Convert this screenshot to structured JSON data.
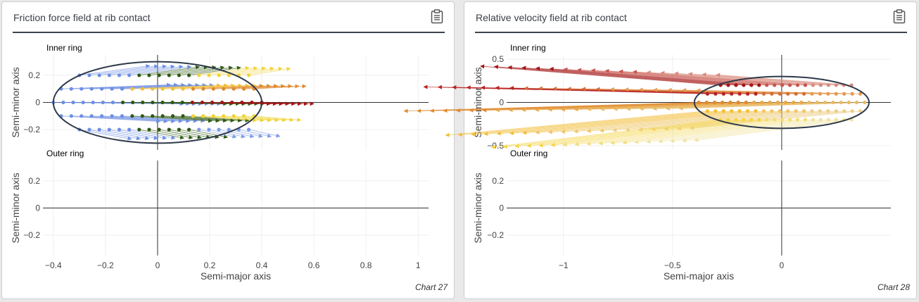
{
  "cards": [
    {
      "title": "Friction force field at rib contact",
      "footer": "Chart 27",
      "chart_data": {
        "type": "vector-field",
        "subplots": [
          {
            "label": "Inner ring",
            "ylabel": "Semi-minor axis",
            "xlim": [
              -0.44,
              1.04
            ],
            "ylim": [
              -0.35,
              0.35
            ],
            "yticks": [
              -0.2,
              0,
              0.2
            ],
            "ytick_labels": [
              "−0.2",
              "0",
              "0.2"
            ]
          },
          {
            "label": "Outer ring",
            "ylabel": "Semi-minor axis",
            "xlim": [
              -0.44,
              1.04
            ],
            "ylim": [
              -0.35,
              0.35
            ],
            "yticks": [
              -0.2,
              0,
              0.2
            ],
            "ytick_labels": [
              "−0.2",
              "0",
              "0.2"
            ]
          }
        ],
        "xlabel": "Semi-major axis",
        "xticks": [
          -0.4,
          -0.2,
          0,
          0.2,
          0.4,
          0.6,
          0.8,
          1
        ],
        "xtick_labels": [
          "−0.4",
          "−0.2",
          "0",
          "0.2",
          "0.4",
          "0.6",
          "0.8",
          "1"
        ],
        "ellipse": {
          "cx": 0,
          "cy": 0,
          "rx": 0.4,
          "ry": 0.3
        },
        "rows": [
          {
            "y": 0.2,
            "x_start": -0.3,
            "x_end": 0.35,
            "points": 18,
            "dx": [
              0.27,
              0.16
            ],
            "dy": [
              0.07,
              0.05
            ],
            "colors": [
              "#6e8fe3",
              "#2f5a14",
              "#f0d43a"
            ]
          },
          {
            "y": 0.1,
            "x_start": -0.37,
            "x_end": 0.37,
            "points": 20,
            "dx": [
              0.42,
              0.2
            ],
            "dy": [
              0.03,
              0.02
            ],
            "colors": [
              "#6e8fe3",
              "#f2bf3a",
              "#e08a30"
            ]
          },
          {
            "y": 0.0,
            "x_start": -0.4,
            "x_end": 0.4,
            "points": 22,
            "dx": [
              0.5,
              0.2
            ],
            "dy": [
              -0.01,
              -0.01
            ],
            "colors": [
              "#6e8fe3",
              "#2f5a14",
              "#a31515"
            ]
          },
          {
            "y": -0.1,
            "x_start": -0.37,
            "x_end": 0.37,
            "points": 20,
            "dx": [
              0.38,
              0.18
            ],
            "dy": [
              -0.04,
              -0.03
            ],
            "colors": [
              "#6e8fe3",
              "#2f5a14",
              "#f0d43a"
            ]
          },
          {
            "y": -0.2,
            "x_start": -0.3,
            "x_end": 0.35,
            "points": 18,
            "dx": [
              0.2,
              0.12
            ],
            "dy": [
              -0.07,
              -0.05
            ],
            "colors": [
              "#6e8fe3",
              "#2f5a14",
              "#7d9be8"
            ]
          }
        ]
      }
    },
    {
      "title": "Relative velocity field at rib contact",
      "footer": "Chart 28",
      "chart_data": {
        "type": "vector-field",
        "subplots": [
          {
            "label": "Inner ring",
            "ylabel": "Semi-minor axis",
            "xlim": [
              -1.26,
              0.5
            ],
            "ylim": [
              -0.55,
              0.55
            ],
            "yticks": [
              -0.5,
              0,
              0.5
            ],
            "ytick_labels": [
              "−0.5",
              "0",
              "0.5"
            ]
          },
          {
            "label": "Outer ring",
            "ylabel": "Semi-minor axis",
            "xlim": [
              -1.26,
              0.5
            ],
            "ylim": [
              -0.35,
              0.35
            ],
            "yticks": [
              -0.2,
              0,
              0.2
            ],
            "ytick_labels": [
              "−0.2",
              "0",
              "0.2"
            ]
          }
        ],
        "xlabel": "Semi-major axis",
        "xticks": [
          -1,
          -0.5,
          0
        ],
        "xtick_labels": [
          "−1",
          "−0.5",
          "0"
        ],
        "ellipse": {
          "cx": 0.0,
          "cy": 0,
          "rx": 0.4,
          "ry": 0.3
        },
        "rows": [
          {
            "y": 0.2,
            "x_start": -0.28,
            "x_end": 0.32,
            "points": 18,
            "dx": [
              -1.1,
              -0.62
            ],
            "dy": [
              0.22,
              0.12
            ],
            "colors": [
              "#a31515",
              "#c7554c",
              "#d98a7d"
            ]
          },
          {
            "y": 0.1,
            "x_start": -0.34,
            "x_end": 0.36,
            "points": 20,
            "dx": [
              -1.3,
              -0.75
            ],
            "dy": [
              0.08,
              0.04
            ],
            "colors": [
              "#b92222",
              "#d36e3a",
              "#e59a52"
            ]
          },
          {
            "y": 0.0,
            "x_start": -0.38,
            "x_end": 0.38,
            "points": 22,
            "dx": [
              -1.35,
              -0.85
            ],
            "dy": [
              -0.1,
              -0.07
            ],
            "colors": [
              "#e08a30",
              "#e8a84a",
              "#e9bb67"
            ]
          },
          {
            "y": -0.1,
            "x_start": -0.34,
            "x_end": 0.36,
            "points": 20,
            "dx": [
              -1.2,
              -0.78
            ],
            "dy": [
              -0.28,
              -0.2
            ],
            "colors": [
              "#f2bf3a",
              "#efc768",
              "#eecf88"
            ]
          },
          {
            "y": -0.2,
            "x_start": -0.28,
            "x_end": 0.32,
            "points": 18,
            "dx": [
              -1.05,
              -0.72
            ],
            "dy": [
              -0.32,
              -0.24
            ],
            "colors": [
              "#f5d442",
              "#f4dd75",
              "#f1e3a0"
            ]
          }
        ]
      }
    }
  ]
}
